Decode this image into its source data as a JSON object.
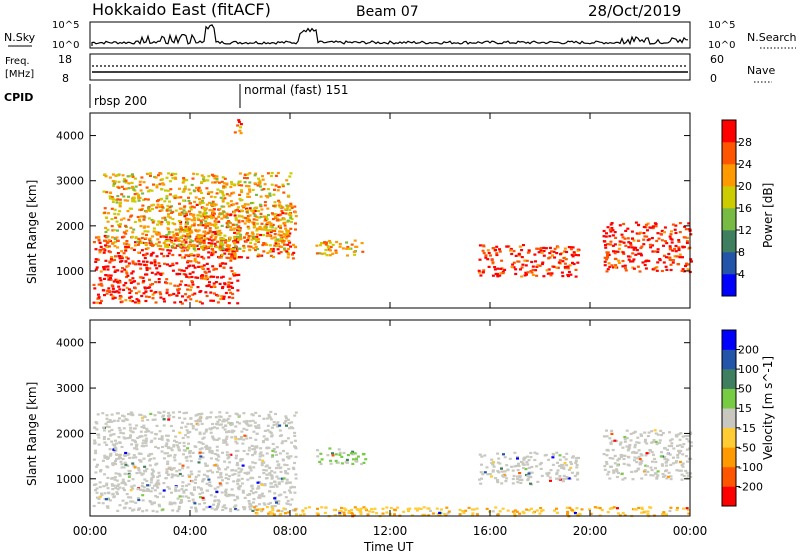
{
  "header": {
    "station": "Hokkaido East (fitACF)",
    "beam": "Beam 07",
    "date": "28/Oct/2019"
  },
  "noise_panel": {
    "left_label": "N.Sky",
    "right_label": "N.Search",
    "left_ticks": [
      "10^5",
      "10^0"
    ],
    "right_ticks": [
      "10^5",
      "10^0"
    ]
  },
  "freq_panel": {
    "left_label_line1": "Freq.",
    "left_label_line2": "[MHz]",
    "left_ticks": [
      "18",
      "8"
    ],
    "right_label": "Nave",
    "right_ticks": [
      "60",
      "0"
    ]
  },
  "cpid_panel": {
    "label": "CPID",
    "modes": [
      {
        "name": "rbsp 200",
        "start_hour": 0
      },
      {
        "name": "normal (fast) 151",
        "start_hour": 6
      }
    ]
  },
  "power_panel": {
    "ylabel": "Slant Range [km]",
    "yticks": [
      1000,
      2000,
      3000,
      4000
    ],
    "colorbar_label": "Power [dB]",
    "colorbar_ticks": [
      "4",
      "8",
      "12",
      "16",
      "20",
      "24",
      "28"
    ],
    "colors": [
      "#0000ff",
      "#2255aa",
      "#3f7f5f",
      "#77bb44",
      "#cccc00",
      "#ff9900",
      "#ff5500",
      "#ff0000"
    ]
  },
  "velocity_panel": {
    "ylabel": "Slant Range [km]",
    "yticks": [
      1000,
      2000,
      3000,
      4000
    ],
    "colorbar_label": "Velocity [m s^-1]",
    "colorbar_ticks": [
      "-200",
      "-100",
      "-50",
      "-15",
      "15",
      "50",
      "100",
      "200"
    ],
    "colors": [
      "#ff0000",
      "#ff5500",
      "#ff9900",
      "#ffcc33",
      "#c8c8c0",
      "#77cc44",
      "#3f7f5f",
      "#2255aa",
      "#0000ff"
    ]
  },
  "xaxis": {
    "label": "Time UT",
    "ticks": [
      "00:00",
      "04:00",
      "08:00",
      "12:00",
      "16:00",
      "20:00",
      "00:00"
    ]
  },
  "chart_data": {
    "type": "heatmap",
    "xlim_hours": [
      0,
      24
    ],
    "ylim_km": [
      180,
      4500
    ],
    "power_regions_approx": [
      {
        "t0": 0.1,
        "t1": 5.9,
        "r0": 300,
        "r1": 1800,
        "level": 28
      },
      {
        "t0": 3.5,
        "t1": 8.2,
        "r0": 1300,
        "r1": 2500,
        "level": 24
      },
      {
        "t0": 0.5,
        "t1": 8.0,
        "r0": 1500,
        "r1": 3200,
        "level": 18
      },
      {
        "t0": 9.0,
        "t1": 11.0,
        "r0": 1350,
        "r1": 1700,
        "level": 20
      },
      {
        "t0": 15.5,
        "t1": 19.5,
        "r0": 900,
        "r1": 1600,
        "level": 26
      },
      {
        "t0": 20.5,
        "t1": 24.0,
        "r0": 1000,
        "r1": 2100,
        "level": 26
      },
      {
        "t0": 5.7,
        "t1": 6.0,
        "r0": 4000,
        "r1": 4400,
        "level": 22
      }
    ],
    "velocity_regions_approx": [
      {
        "t0": 0.1,
        "t1": 8.2,
        "r0": 300,
        "r1": 2500,
        "velocity": 0
      },
      {
        "t0": 9.0,
        "t1": 11.0,
        "r0": 1350,
        "r1": 1700,
        "velocity": 40
      },
      {
        "t0": 15.5,
        "t1": 19.5,
        "r0": 900,
        "r1": 1600,
        "velocity": 0
      },
      {
        "t0": 20.5,
        "t1": 24.0,
        "r0": 1000,
        "r1": 2100,
        "velocity": 0
      },
      {
        "t0": 6.5,
        "t1": 24.0,
        "r0": 200,
        "r1": 400,
        "velocity": -30
      }
    ]
  }
}
